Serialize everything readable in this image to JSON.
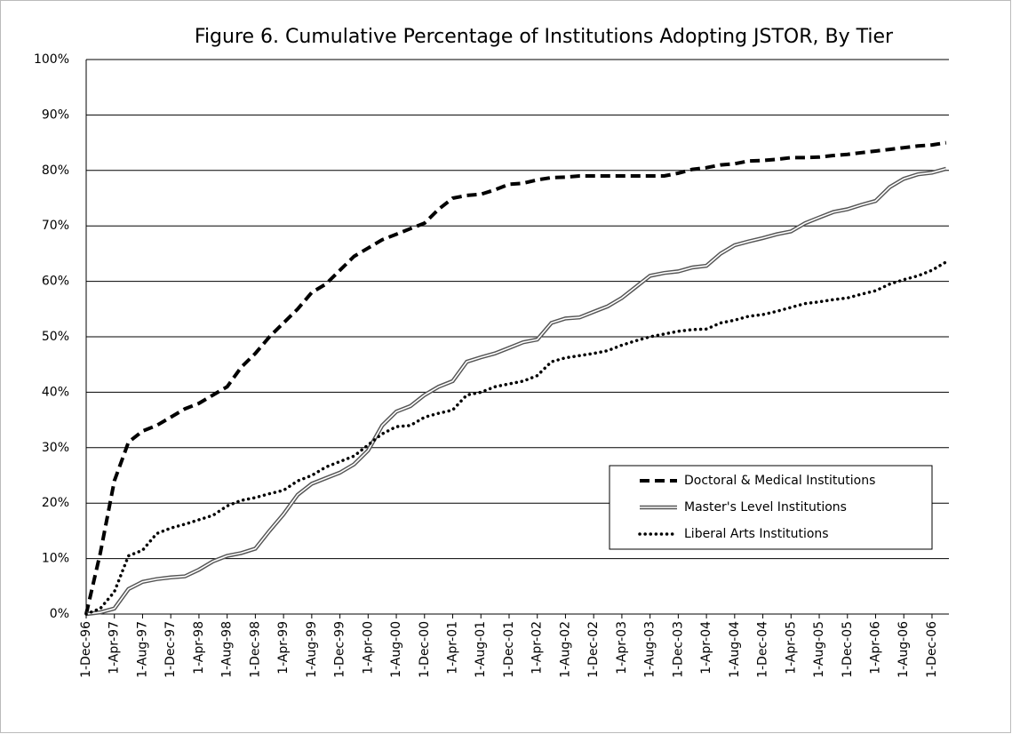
{
  "chart_data": {
    "type": "line",
    "title": "Figure 6. Cumulative Percentage of Institutions Adopting JSTOR, By Tier",
    "categories": [
      "1-Dec-96",
      null,
      "1-Apr-97",
      null,
      "1-Aug-97",
      null,
      "1-Dec-97",
      null,
      "1-Apr-98",
      null,
      "1-Aug-98",
      null,
      "1-Dec-98",
      null,
      "1-Apr-99",
      null,
      "1-Aug-99",
      null,
      "1-Dec-99",
      null,
      "1-Apr-00",
      null,
      "1-Aug-00",
      null,
      "1-Dec-00",
      null,
      "1-Apr-01",
      null,
      "1-Aug-01",
      null,
      "1-Dec-01",
      null,
      "1-Apr-02",
      null,
      "1-Aug-02",
      null,
      "1-Dec-02",
      null,
      "1-Apr-03",
      null,
      "1-Aug-03",
      null,
      "1-Dec-03",
      null,
      "1-Apr-04",
      null,
      "1-Aug-04",
      null,
      "1-Dec-04",
      null,
      "1-Apr-05",
      null,
      "1-Aug-05",
      null,
      "1-Dec-05",
      null,
      "1-Apr-06",
      null,
      "1-Aug-06",
      null,
      "1-Dec-06",
      null
    ],
    "series": [
      {
        "name": "Doctoral & Medical Institutions",
        "color": "#000000",
        "style": "dashed",
        "values": [
          0,
          11,
          24,
          31,
          33,
          34,
          35.5,
          37,
          38,
          39.5,
          41,
          44.5,
          47,
          50,
          52.5,
          55,
          58,
          59.5,
          62,
          64.5,
          66,
          67.5,
          68.5,
          69.5,
          70.5,
          73,
          75,
          75.5,
          75.7,
          76.5,
          77.5,
          77.7,
          78.3,
          78.7,
          78.8,
          79,
          79,
          79,
          79,
          79,
          79,
          79,
          79.5,
          80.2,
          80.5,
          81,
          81.2,
          81.7,
          81.8,
          82,
          82.3,
          82.3,
          82.4,
          82.7,
          82.9,
          83.2,
          83.5,
          83.8,
          84.1,
          84.4,
          84.6,
          85
        ]
      },
      {
        "name": "Master's Level Institutions",
        "color": "#555555",
        "style": "double",
        "values": [
          0,
          0.3,
          1,
          4.5,
          5.8,
          6.3,
          6.6,
          6.8,
          8,
          9.5,
          10.5,
          11,
          11.8,
          15,
          18,
          21.5,
          23.5,
          24.5,
          25.5,
          27,
          29.5,
          34,
          36.5,
          37.5,
          39.5,
          41,
          42,
          45.5,
          46.3,
          47,
          48,
          49,
          49.5,
          52.5,
          53.3,
          53.5,
          54.5,
          55.5,
          57,
          59,
          61,
          61.5,
          61.8,
          62.5,
          62.8,
          65,
          66.5,
          67.2,
          67.8,
          68.5,
          69,
          70.5,
          71.5,
          72.5,
          73,
          73.8,
          74.5,
          77,
          78.5,
          79.3,
          79.6,
          80.3
        ]
      },
      {
        "name": "Liberal Arts Institutions",
        "color": "#000000",
        "style": "dotted",
        "values": [
          0,
          1,
          4,
          10.5,
          11.5,
          14.5,
          15.5,
          16.2,
          17,
          17.8,
          19.5,
          20.5,
          21,
          21.7,
          22.3,
          24,
          25,
          26.5,
          27.5,
          28.5,
          30.5,
          32.5,
          33.8,
          34,
          35.5,
          36.2,
          36.8,
          39.5,
          40,
          41,
          41.5,
          42,
          43,
          45.5,
          46.2,
          46.6,
          47,
          47.5,
          48.5,
          49.3,
          50,
          50.5,
          51,
          51.3,
          51.4,
          52.5,
          53,
          53.7,
          54,
          54.6,
          55.3,
          56,
          56.3,
          56.7,
          57,
          57.7,
          58.3,
          59.5,
          60.3,
          61,
          62,
          63.5
        ]
      }
    ],
    "ylim": [
      0,
      100
    ],
    "yticks": [
      {
        "value": 0,
        "label": "0%"
      },
      {
        "value": 10,
        "label": "10%"
      },
      {
        "value": 20,
        "label": "20%"
      },
      {
        "value": 30,
        "label": "30%"
      },
      {
        "value": 40,
        "label": "40%"
      },
      {
        "value": 50,
        "label": "50%"
      },
      {
        "value": 60,
        "label": "60%"
      },
      {
        "value": 70,
        "label": "70%"
      },
      {
        "value": 80,
        "label": "80%"
      },
      {
        "value": 90,
        "label": "90%"
      },
      {
        "value": 100,
        "label": "100%"
      }
    ],
    "grid": true
  }
}
